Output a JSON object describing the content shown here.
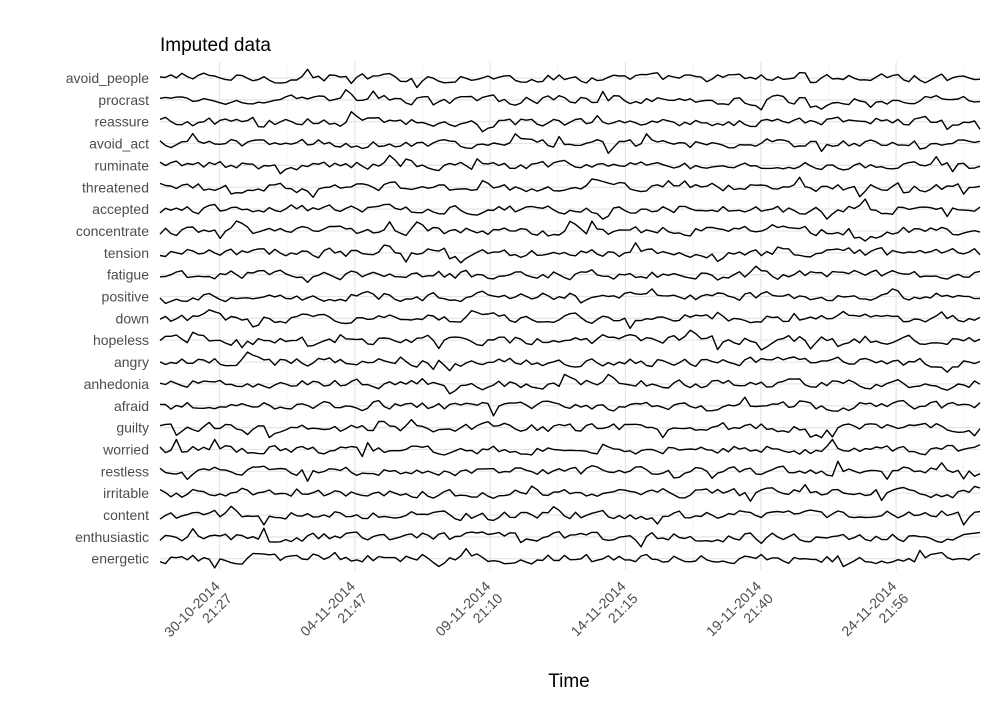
{
  "chart_data": {
    "type": "line",
    "title": "Imputed data",
    "xlabel": "Time",
    "ylabel": "",
    "grid": true,
    "x_ticks": [
      {
        "label_date": "30-10-2014",
        "label_time": "21:27",
        "day": 0
      },
      {
        "label_date": "04-11-2014",
        "label_time": "21:47",
        "day": 5
      },
      {
        "label_date": "09-11-2014",
        "label_time": "21:10",
        "day": 10
      },
      {
        "label_date": "14-11-2014",
        "label_time": "21:15",
        "day": 15
      },
      {
        "label_date": "19-11-2014",
        "label_time": "21:40",
        "day": 20
      },
      {
        "label_date": "24-11-2014",
        "label_time": "21:56",
        "day": 25
      }
    ],
    "x_range_days": [
      -2.2,
      28.1
    ],
    "series_order_top_to_bottom": [
      "avoid_people",
      "procrast",
      "reassure",
      "avoid_act",
      "ruminate",
      "threatened",
      "accepted",
      "concentrate",
      "tension",
      "fatigue",
      "positive",
      "down",
      "hopeless",
      "angry",
      "anhedonia",
      "afraid",
      "guilty",
      "worried",
      "restless",
      "irritable",
      "content",
      "enthusiastic",
      "energetic"
    ],
    "points_per_series": 151
  }
}
